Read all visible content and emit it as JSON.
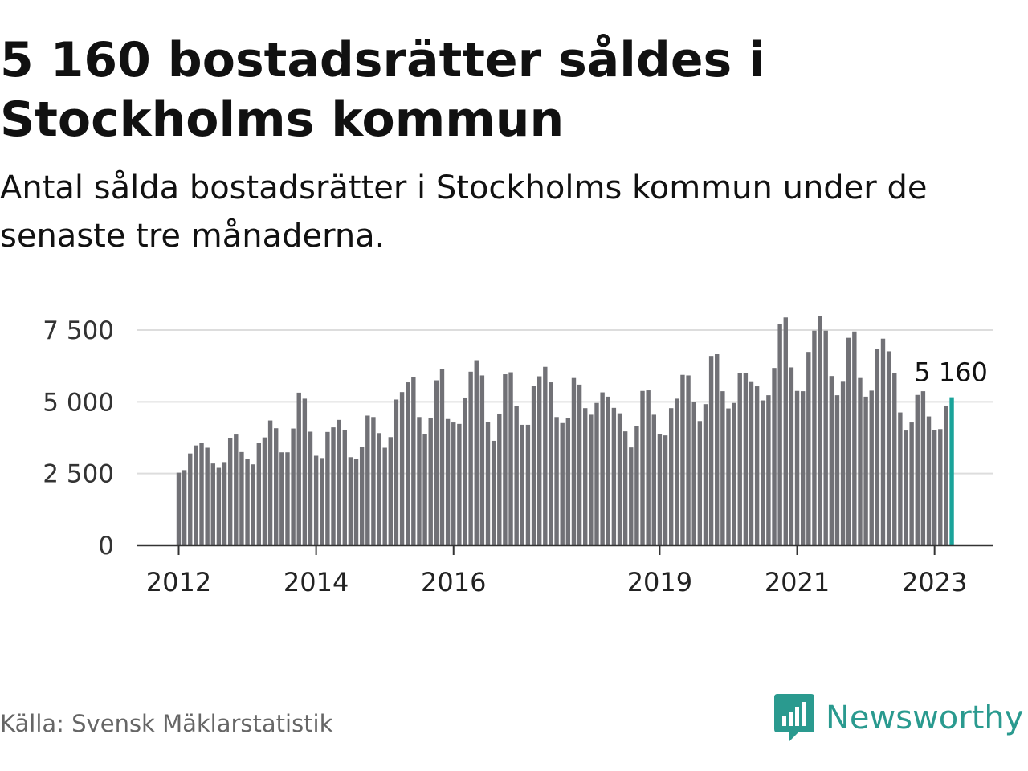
{
  "title": "5 160 bostadsrätter såldes i Stockholms kommun",
  "subtitle": "Antal sålda bostadsrätter i Stockholms kommun under de senaste tre månaderna.",
  "source": "Källa: Svensk Mäklarstatistik",
  "brand": {
    "name": "Newsworthy",
    "logo": "bar-chart-bubble-icon",
    "color": "#2a9a8f"
  },
  "colors": {
    "bar": "#717176",
    "highlight": "#1aa39a",
    "grid": "#dddddd",
    "axis": "#333333"
  },
  "chart_data": {
    "type": "bar",
    "title": "5 160 bostadsrätter såldes i Stockholms kommun",
    "xlabel": "",
    "ylabel": "",
    "ylim": [
      0,
      8000
    ],
    "yticks": [
      0,
      2500,
      5000,
      7500
    ],
    "ytick_labels": [
      "0",
      "2 500",
      "5 000",
      "7 500"
    ],
    "xticks": [
      {
        "index": 0,
        "label": "2012"
      },
      {
        "index": 24,
        "label": "2014"
      },
      {
        "index": 48,
        "label": "2016"
      },
      {
        "index": 84,
        "label": "2019"
      },
      {
        "index": 108,
        "label": "2021"
      },
      {
        "index": 132,
        "label": "2023"
      }
    ],
    "start": "2012-01",
    "highlight_index": 135,
    "highlight_label": "5 160",
    "grid": true,
    "values": [
      2530,
      2620,
      3200,
      3480,
      3560,
      3400,
      2850,
      2700,
      2900,
      3750,
      3860,
      3250,
      3000,
      2820,
      3580,
      3760,
      4350,
      4080,
      3240,
      3240,
      4070,
      5320,
      5110,
      3960,
      3120,
      3040,
      3950,
      4110,
      4370,
      4030,
      3070,
      3020,
      3440,
      4520,
      4470,
      3910,
      3400,
      3770,
      5080,
      5340,
      5680,
      5860,
      4470,
      3880,
      4450,
      5750,
      6150,
      4400,
      4280,
      4230,
      5150,
      6050,
      6450,
      5920,
      4310,
      3640,
      4590,
      5960,
      6030,
      4860,
      4200,
      4200,
      5560,
      5890,
      6220,
      5680,
      4470,
      4260,
      4440,
      5830,
      5600,
      4780,
      4550,
      4960,
      5330,
      5180,
      4790,
      4600,
      3970,
      3410,
      4160,
      5380,
      5400,
      4550,
      3870,
      3830,
      4780,
      5110,
      5940,
      5920,
      5000,
      4330,
      4920,
      6600,
      6660,
      5370,
      4770,
      4960,
      6000,
      6000,
      5690,
      5540,
      5050,
      5230,
      6180,
      7720,
      7940,
      6200,
      5380,
      5370,
      6740,
      7480,
      7980,
      7480,
      5900,
      5230,
      5700,
      7230,
      7450,
      5830,
      5180,
      5390,
      6850,
      7200,
      6760,
      5990,
      4630,
      4000,
      4280,
      5240,
      5370,
      4490,
      4020,
      4050,
      4870,
      5160
    ]
  }
}
